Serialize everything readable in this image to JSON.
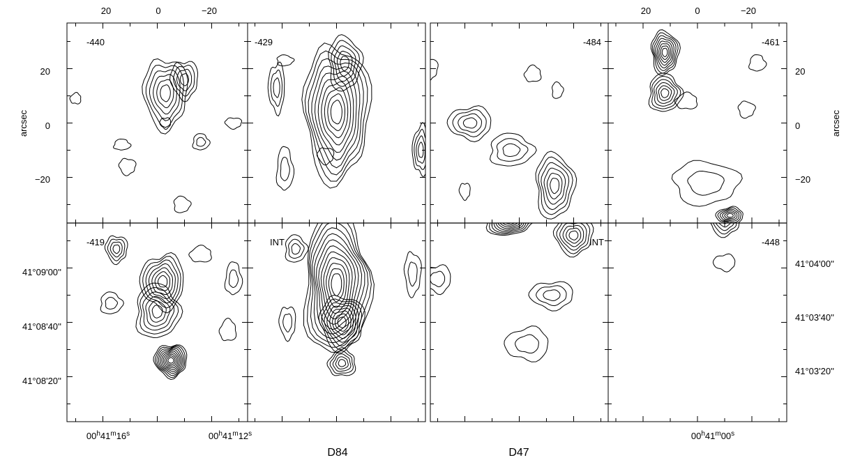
{
  "chart_data": [
    {
      "type": "contour",
      "group": "D84",
      "panels": [
        {
          "id": "d84-tl",
          "label": "-440",
          "contours": [
            {
              "peak": [
                -3,
                11
              ],
              "nlevels": 6,
              "rx": 8,
              "ry": 13
            },
            {
              "peak": [
                -10,
                16
              ],
              "nlevels": 4,
              "rx": 5,
              "ry": 7
            },
            {
              "peak": [
                -16,
                -7
              ],
              "nlevels": 2,
              "rx": 3,
              "ry": 3
            },
            {
              "peak": [
                -9,
                -30
              ],
              "nlevels": 1,
              "rx": 3,
              "ry": 3
            },
            {
              "peak": [
                11,
                -16
              ],
              "nlevels": 1,
              "rx": 3,
              "ry": 3
            },
            {
              "peak": [
                -28,
                0
              ],
              "nlevels": 1,
              "rx": 3,
              "ry": 2
            },
            {
              "peak": [
                13,
                -8
              ],
              "nlevels": 1,
              "rx": 3,
              "ry": 2
            },
            {
              "peak": [
                30,
                9
              ],
              "nlevels": 1,
              "rx": 2,
              "ry": 2
            },
            {
              "peak": [
                -3,
                0
              ],
              "nlevels": 1,
              "rx": 2,
              "ry": 2
            }
          ]
        },
        {
          "id": "d84-tr",
          "label": "-429",
          "contours": [
            {
              "peak": [
                0,
                4
              ],
              "nlevels": 10,
              "rx": 12,
              "ry": 25
            },
            {
              "peak": [
                -3,
                22
              ],
              "nlevels": 5,
              "rx": 6,
              "ry": 10
            },
            {
              "peak": [
                -31,
                -10
              ],
              "nlevels": 4,
              "rx": 3,
              "ry": 9
            },
            {
              "peak": [
                22,
                13
              ],
              "nlevels": 3,
              "rx": 3,
              "ry": 9
            },
            {
              "peak": [
                19,
                -17
              ],
              "nlevels": 2,
              "rx": 3,
              "ry": 8
            },
            {
              "peak": [
                4,
                -12
              ],
              "nlevels": 1,
              "rx": 3,
              "ry": 3
            },
            {
              "peak": [
                19,
                23
              ],
              "nlevels": 1,
              "rx": 3,
              "ry": 2
            }
          ]
        },
        {
          "id": "d84-bl",
          "label": "-419",
          "contours": [
            {
              "peak": [
                -2,
                15
              ],
              "nlevels": 7,
              "rx": 8,
              "ry": 10
            },
            {
              "peak": [
                0,
                4
              ],
              "nlevels": 6,
              "rx": 8,
              "ry": 10
            },
            {
              "peak": [
                -5,
                -14
              ],
              "nlevels": 10,
              "rx": 6,
              "ry": 6
            },
            {
              "peak": [
                15,
                27
              ],
              "nlevels": 4,
              "rx": 4,
              "ry": 5
            },
            {
              "peak": [
                17,
                7
              ],
              "nlevels": 2,
              "rx": 4,
              "ry": 4
            },
            {
              "peak": [
                -28,
                16
              ],
              "nlevels": 2,
              "rx": 3,
              "ry": 6
            },
            {
              "peak": [
                -16,
                25
              ],
              "nlevels": 1,
              "rx": 4,
              "ry": 3
            },
            {
              "peak": [
                -26,
                -3
              ],
              "nlevels": 1,
              "rx": 3,
              "ry": 4
            }
          ]
        },
        {
          "id": "d84-br",
          "label": "INT",
          "contours": [
            {
              "peak": [
                0,
                14
              ],
              "nlevels": 12,
              "rx": 12,
              "ry": 26
            },
            {
              "peak": [
                -2,
                0
              ],
              "nlevels": 8,
              "rx": 8,
              "ry": 10
            },
            {
              "peak": [
                -2,
                -15
              ],
              "nlevels": 5,
              "rx": 5,
              "ry": 5
            },
            {
              "peak": [
                15,
                27
              ],
              "nlevels": 3,
              "rx": 4,
              "ry": 5
            },
            {
              "peak": [
                -28,
                18
              ],
              "nlevels": 2,
              "rx": 3,
              "ry": 8
            },
            {
              "peak": [
                18,
                0
              ],
              "nlevels": 2,
              "rx": 3,
              "ry": 6
            }
          ]
        }
      ]
    },
    {
      "type": "contour",
      "group": "D47",
      "panels": [
        {
          "id": "d47-tl",
          "label": "-484",
          "contours": [
            {
              "peak": [
                18,
                0
              ],
              "nlevels": 4,
              "rx": 8,
              "ry": 6
            },
            {
              "peak": [
                -13,
                -23
              ],
              "nlevels": 6,
              "rx": 7,
              "ry": 12
            },
            {
              "peak": [
                3,
                -10
              ],
              "nlevels": 3,
              "rx": 8,
              "ry": 6
            },
            {
              "peak": [
                -5,
                18
              ],
              "nlevels": 1,
              "rx": 3,
              "ry": 3
            },
            {
              "peak": [
                33,
                20
              ],
              "nlevels": 1,
              "rx": 3,
              "ry": 4
            },
            {
              "peak": [
                -14,
                12
              ],
              "nlevels": 1,
              "rx": 2,
              "ry": 3
            },
            {
              "peak": [
                20,
                -25
              ],
              "nlevels": 1,
              "rx": 2,
              "ry": 3
            }
          ]
        },
        {
          "id": "d47-tr",
          "label": "-461",
          "contours": [
            {
              "peak": [
                12,
                26
              ],
              "nlevels": 8,
              "rx": 5,
              "ry": 8
            },
            {
              "peak": [
                12,
                11
              ],
              "nlevels": 6,
              "rx": 6,
              "ry": 7
            },
            {
              "peak": [
                -12,
                -34
              ],
              "nlevels": 6,
              "rx": 5,
              "ry": 3
            },
            {
              "peak": [
                -3,
                -22
              ],
              "nlevels": 2,
              "rx": 12,
              "ry": 8
            },
            {
              "peak": [
                -18,
                5
              ],
              "nlevels": 1,
              "rx": 3,
              "ry": 3
            },
            {
              "peak": [
                -22,
                22
              ],
              "nlevels": 1,
              "rx": 3,
              "ry": 3
            },
            {
              "peak": [
                4,
                8
              ],
              "nlevels": 1,
              "rx": 4,
              "ry": 3
            }
          ]
        },
        {
          "id": "d47-bl",
          "label": "INT",
          "contours": [
            {
              "peak": [
                4,
                38
              ],
              "nlevels": 10,
              "rx": 9,
              "ry": 6
            },
            {
              "peak": [
                18,
                55
              ],
              "nlevels": 5,
              "rx": 6,
              "ry": 6
            },
            {
              "peak": [
                -20,
                32
              ],
              "nlevels": 6,
              "rx": 7,
              "ry": 7
            },
            {
              "peak": [
                -30,
                48
              ],
              "nlevels": 4,
              "rx": 5,
              "ry": 5
            },
            {
              "peak": [
                -12,
                10
              ],
              "nlevels": 3,
              "rx": 8,
              "ry": 5
            },
            {
              "peak": [
                -40,
                0
              ],
              "nlevels": 3,
              "rx": 6,
              "ry": 6
            },
            {
              "peak": [
                -3,
                -8
              ],
              "nlevels": 2,
              "rx": 8,
              "ry": 6
            },
            {
              "peak": [
                30,
                16
              ],
              "nlevels": 2,
              "rx": 5,
              "ry": 5
            }
          ]
        },
        {
          "id": "d47-br",
          "label": "-448",
          "contours": [
            {
              "peak": [
                9,
                50
              ],
              "nlevels": 8,
              "rx": 7,
              "ry": 5
            },
            {
              "peak": [
                28,
                54
              ],
              "nlevels": 5,
              "rx": 6,
              "ry": 5
            },
            {
              "peak": [
                -10,
                38
              ],
              "nlevels": 5,
              "rx": 6,
              "ry": 6
            },
            {
              "peak": [
                -22,
                54
              ],
              "nlevels": 3,
              "rx": 5,
              "ry": 5
            },
            {
              "peak": [
                -18,
                65
              ],
              "nlevels": 2,
              "rx": 4,
              "ry": 4
            },
            {
              "peak": [
                3,
                68
              ],
              "nlevels": 2,
              "rx": 5,
              "ry": 3
            },
            {
              "peak": [
                -10,
                22
              ],
              "nlevels": 1,
              "rx": 4,
              "ry": 3
            }
          ]
        }
      ]
    }
  ],
  "axes": {
    "top_ticks_left": [
      "20",
      "0",
      "−20"
    ],
    "top_ticks_right": [
      "20",
      "0",
      "−20"
    ],
    "arcsec_ticks": [
      "20",
      "0",
      "−20"
    ],
    "arcsec_label": "arcsec",
    "dec_left": [
      "41°09'00''",
      "41°08'40''",
      "41°08'20''"
    ],
    "dec_right": [
      "41°04'00''",
      "41°03'40''",
      "41°03'20''"
    ],
    "ra_left": [
      {
        "h": "00",
        "m": "41",
        "s": "16"
      },
      {
        "h": "00",
        "m": "41",
        "s": "12"
      }
    ],
    "ra_right": [
      {
        "h": "00",
        "m": "41",
        "s": "00"
      }
    ]
  },
  "group_labels": [
    "D84",
    "D47"
  ]
}
